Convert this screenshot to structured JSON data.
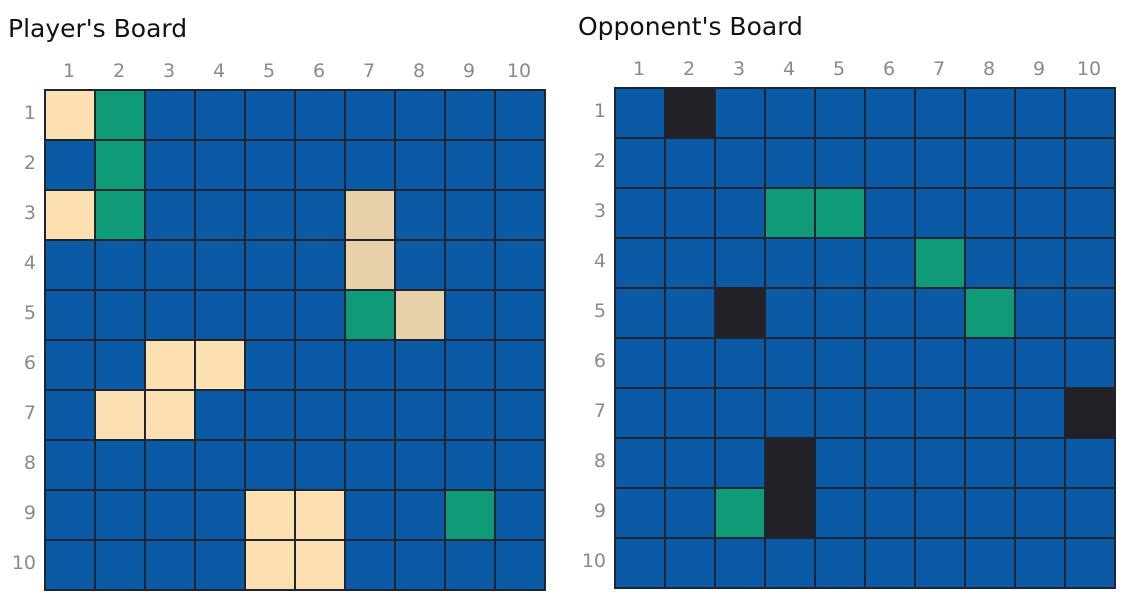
{
  "colors": {
    "water": "#0a5aa6",
    "ship": "#fde0b2",
    "ship_damaged": "#e8d0a8",
    "hit": "#0f9a78",
    "sunk": "#222226",
    "grid_line": "#1f2530",
    "label": "#8a8a8a"
  },
  "player": {
    "title": "Player's Board",
    "col_labels": [
      "1",
      "2",
      "3",
      "4",
      "5",
      "6",
      "7",
      "8",
      "9",
      "10"
    ],
    "row_labels": [
      "1",
      "2",
      "3",
      "4",
      "5",
      "6",
      "7",
      "8",
      "9",
      "10"
    ],
    "grid": [
      [
        "ship",
        "hit",
        "water",
        "water",
        "water",
        "water",
        "water",
        "water",
        "water",
        "water"
      ],
      [
        "water",
        "hit",
        "water",
        "water",
        "water",
        "water",
        "water",
        "water",
        "water",
        "water"
      ],
      [
        "ship",
        "hit",
        "water",
        "water",
        "water",
        "water",
        "ship_damaged",
        "water",
        "water",
        "water"
      ],
      [
        "water",
        "water",
        "water",
        "water",
        "water",
        "water",
        "ship_damaged",
        "water",
        "water",
        "water"
      ],
      [
        "water",
        "water",
        "water",
        "water",
        "water",
        "water",
        "hit",
        "ship_damaged",
        "water",
        "water"
      ],
      [
        "water",
        "water",
        "ship",
        "ship",
        "water",
        "water",
        "water",
        "water",
        "water",
        "water"
      ],
      [
        "water",
        "ship",
        "ship",
        "water",
        "water",
        "water",
        "water",
        "water",
        "water",
        "water"
      ],
      [
        "water",
        "water",
        "water",
        "water",
        "water",
        "water",
        "water",
        "water",
        "water",
        "water"
      ],
      [
        "water",
        "water",
        "water",
        "water",
        "ship",
        "ship",
        "water",
        "water",
        "hit",
        "water"
      ],
      [
        "water",
        "water",
        "water",
        "water",
        "ship",
        "ship",
        "water",
        "water",
        "water",
        "water"
      ]
    ]
  },
  "opponent": {
    "title": "Opponent's Board",
    "col_labels": [
      "1",
      "2",
      "3",
      "4",
      "5",
      "6",
      "7",
      "8",
      "9",
      "10"
    ],
    "row_labels": [
      "1",
      "2",
      "3",
      "4",
      "5",
      "6",
      "7",
      "8",
      "9",
      "10"
    ],
    "grid": [
      [
        "water",
        "sunk",
        "water",
        "water",
        "water",
        "water",
        "water",
        "water",
        "water",
        "water"
      ],
      [
        "water",
        "water",
        "water",
        "water",
        "water",
        "water",
        "water",
        "water",
        "water",
        "water"
      ],
      [
        "water",
        "water",
        "water",
        "hit",
        "hit",
        "water",
        "water",
        "water",
        "water",
        "water"
      ],
      [
        "water",
        "water",
        "water",
        "water",
        "water",
        "water",
        "hit",
        "water",
        "water",
        "water"
      ],
      [
        "water",
        "water",
        "sunk",
        "water",
        "water",
        "water",
        "water",
        "hit",
        "water",
        "water"
      ],
      [
        "water",
        "water",
        "water",
        "water",
        "water",
        "water",
        "water",
        "water",
        "water",
        "water"
      ],
      [
        "water",
        "water",
        "water",
        "water",
        "water",
        "water",
        "water",
        "water",
        "water",
        "sunk"
      ],
      [
        "water",
        "water",
        "water",
        "sunk",
        "water",
        "water",
        "water",
        "water",
        "water",
        "water"
      ],
      [
        "water",
        "water",
        "hit",
        "sunk",
        "water",
        "water",
        "water",
        "water",
        "water",
        "water"
      ],
      [
        "water",
        "water",
        "water",
        "water",
        "water",
        "water",
        "water",
        "water",
        "water",
        "water"
      ]
    ]
  }
}
